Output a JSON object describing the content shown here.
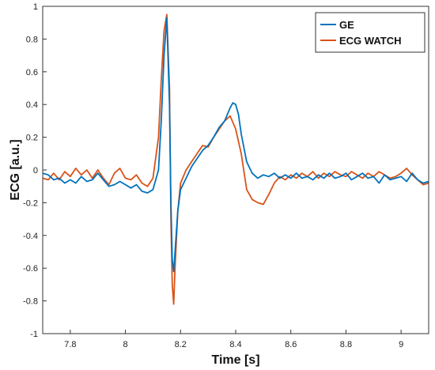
{
  "chart_data": {
    "type": "line",
    "xlabel": "Time [s]",
    "ylabel": "ECG [a.u.]",
    "xlim": [
      7.7,
      9.1
    ],
    "ylim": [
      -1,
      1
    ],
    "xticks": [
      7.8,
      8,
      8.2,
      8.4,
      8.6,
      8.8,
      9
    ],
    "yticks": [
      -1,
      -0.8,
      -0.6,
      -0.4,
      -0.2,
      0,
      0.2,
      0.4,
      0.6,
      0.8,
      1
    ],
    "xtick_labels": [
      "7.8",
      "8",
      "8.2",
      "8.4",
      "8.6",
      "8.8",
      "9"
    ],
    "ytick_labels": [
      "-1",
      "-0.8",
      "-0.6",
      "-0.4",
      "-0.2",
      "0",
      "0.2",
      "0.4",
      "0.6",
      "0.8",
      "1"
    ],
    "grid": false,
    "legend_position": "top-right",
    "colors": {
      "GE": "#0072bd",
      "ECG WATCH": "#d95319"
    },
    "series": [
      {
        "name": "GE",
        "x": [
          7.7,
          7.72,
          7.74,
          7.76,
          7.78,
          7.8,
          7.82,
          7.84,
          7.86,
          7.88,
          7.9,
          7.92,
          7.94,
          7.96,
          7.98,
          8.0,
          8.02,
          8.04,
          8.06,
          8.08,
          8.1,
          8.12,
          8.13,
          8.14,
          8.15,
          8.16,
          8.165,
          8.17,
          8.175,
          8.18,
          8.19,
          8.2,
          8.22,
          8.24,
          8.26,
          8.28,
          8.3,
          8.32,
          8.34,
          8.36,
          8.38,
          8.39,
          8.4,
          8.41,
          8.42,
          8.44,
          8.46,
          8.48,
          8.5,
          8.52,
          8.54,
          8.56,
          8.58,
          8.6,
          8.62,
          8.64,
          8.66,
          8.68,
          8.7,
          8.72,
          8.74,
          8.76,
          8.78,
          8.8,
          8.82,
          8.84,
          8.86,
          8.88,
          8.9,
          8.92,
          8.94,
          8.96,
          8.98,
          9.0,
          9.02,
          9.04,
          9.06,
          9.08,
          9.1
        ],
        "y": [
          -0.02,
          -0.03,
          -0.06,
          -0.05,
          -0.08,
          -0.06,
          -0.08,
          -0.04,
          -0.07,
          -0.06,
          -0.02,
          -0.06,
          -0.1,
          -0.09,
          -0.07,
          -0.09,
          -0.11,
          -0.09,
          -0.13,
          -0.14,
          -0.12,
          0.0,
          0.3,
          0.7,
          0.93,
          0.4,
          -0.2,
          -0.55,
          -0.62,
          -0.5,
          -0.25,
          -0.12,
          -0.05,
          0.02,
          0.07,
          0.12,
          0.15,
          0.2,
          0.26,
          0.3,
          0.38,
          0.41,
          0.4,
          0.34,
          0.22,
          0.05,
          -0.02,
          -0.05,
          -0.03,
          -0.04,
          -0.02,
          -0.05,
          -0.03,
          -0.05,
          -0.02,
          -0.05,
          -0.04,
          -0.06,
          -0.03,
          -0.05,
          -0.02,
          -0.05,
          -0.04,
          -0.02,
          -0.06,
          -0.04,
          -0.02,
          -0.05,
          -0.04,
          -0.08,
          -0.03,
          -0.06,
          -0.05,
          -0.04,
          -0.07,
          -0.02,
          -0.06,
          -0.08,
          -0.07
        ]
      },
      {
        "name": "ECG WATCH",
        "x": [
          7.7,
          7.72,
          7.74,
          7.76,
          7.78,
          7.8,
          7.82,
          7.84,
          7.86,
          7.88,
          7.9,
          7.92,
          7.94,
          7.96,
          7.98,
          8.0,
          8.02,
          8.04,
          8.06,
          8.08,
          8.1,
          8.12,
          8.13,
          8.14,
          8.15,
          8.16,
          8.165,
          8.17,
          8.175,
          8.18,
          8.19,
          8.2,
          8.22,
          8.24,
          8.26,
          8.28,
          8.3,
          8.32,
          8.34,
          8.36,
          8.38,
          8.4,
          8.42,
          8.44,
          8.46,
          8.48,
          8.5,
          8.52,
          8.54,
          8.56,
          8.58,
          8.6,
          8.62,
          8.64,
          8.66,
          8.68,
          8.7,
          8.72,
          8.74,
          8.76,
          8.78,
          8.8,
          8.82,
          8.84,
          8.86,
          8.88,
          8.9,
          8.92,
          8.94,
          8.96,
          8.98,
          9.0,
          9.02,
          9.04,
          9.06,
          9.08,
          9.1
        ],
        "y": [
          -0.05,
          -0.06,
          -0.02,
          -0.06,
          -0.01,
          -0.04,
          0.01,
          -0.03,
          0.0,
          -0.05,
          0.0,
          -0.05,
          -0.09,
          -0.02,
          0.01,
          -0.05,
          -0.06,
          -0.03,
          -0.08,
          -0.1,
          -0.05,
          0.2,
          0.55,
          0.85,
          0.95,
          0.5,
          -0.3,
          -0.7,
          -0.82,
          -0.6,
          -0.25,
          -0.08,
          0.0,
          0.05,
          0.1,
          0.15,
          0.14,
          0.2,
          0.25,
          0.3,
          0.33,
          0.25,
          0.1,
          -0.12,
          -0.18,
          -0.2,
          -0.21,
          -0.15,
          -0.08,
          -0.04,
          -0.06,
          -0.03,
          -0.05,
          -0.02,
          -0.04,
          -0.01,
          -0.05,
          -0.02,
          -0.04,
          -0.01,
          -0.03,
          -0.04,
          -0.01,
          -0.03,
          -0.05,
          -0.02,
          -0.04,
          -0.01,
          -0.03,
          -0.05,
          -0.04,
          -0.02,
          0.01,
          -0.03,
          -0.06,
          -0.09,
          -0.08
        ]
      }
    ]
  }
}
